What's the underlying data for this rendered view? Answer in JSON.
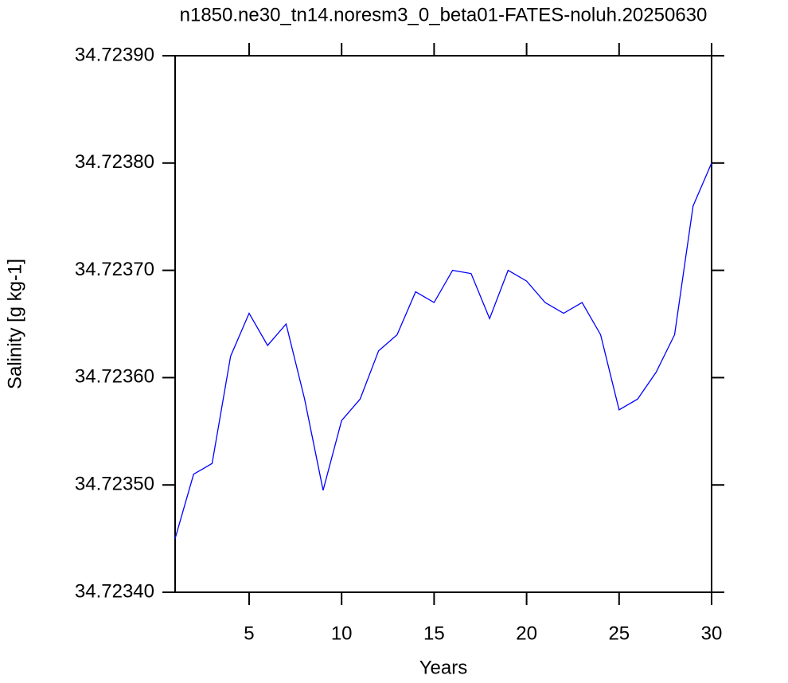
{
  "chart_data": {
    "type": "line",
    "title": "n1850.ne30_tn14.noresm3_0_beta01-FATES-noluh.20250630",
    "xlabel": "Years",
    "ylabel": "Salinity [g kg-1]",
    "x": [
      1,
      2,
      3,
      4,
      5,
      6,
      7,
      8,
      9,
      10,
      11,
      12,
      13,
      14,
      15,
      16,
      17,
      18,
      19,
      20,
      21,
      22,
      23,
      24,
      25,
      26,
      27,
      28,
      29,
      30
    ],
    "series": [
      {
        "color": "#0000ff",
        "values": [
          34.72345,
          34.72351,
          34.72352,
          34.72362,
          34.72366,
          34.72363,
          34.72365,
          34.72358,
          34.723495,
          34.72356,
          34.72358,
          34.723625,
          34.72364,
          34.72368,
          34.72367,
          34.7237,
          34.723697,
          34.723655,
          34.7237,
          34.72369,
          34.72367,
          34.72366,
          34.72367,
          34.72364,
          34.72357,
          34.72358,
          34.723605,
          34.72364,
          34.72376,
          34.7238
        ]
      }
    ],
    "xlim": [
      1,
      30
    ],
    "xticks": [
      5,
      10,
      15,
      20,
      25,
      30
    ],
    "ylim": [
      34.7234,
      34.7239
    ],
    "yticks": [
      {
        "value": 34.7234,
        "label": "34.72340"
      },
      {
        "value": 34.7235,
        "label": "34.72350"
      },
      {
        "value": 34.7236,
        "label": "34.72360"
      },
      {
        "value": 34.7237,
        "label": "34.72370"
      },
      {
        "value": 34.7238,
        "label": "34.72380"
      },
      {
        "value": 34.7239,
        "label": "34.72390"
      }
    ],
    "grid": false
  }
}
